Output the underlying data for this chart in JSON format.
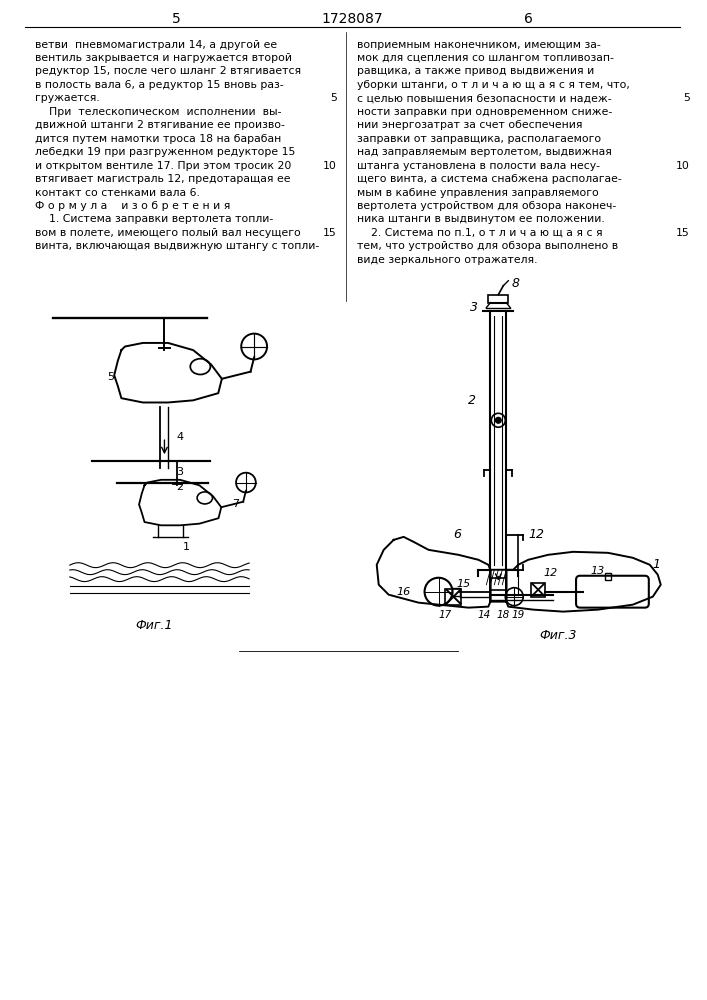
{
  "title": "1728087",
  "page_left": "5",
  "page_right": "6",
  "fig1_caption": "Фиг.1",
  "fig3_caption": "Фиг.3",
  "left_column": [
    "ветви  пневмомагистрали 14, а другой ее",
    "вентиль закрывается и нагружается второй",
    "редуктор 15, после чего шланг 2 втягивается",
    "в полость вала 6, а редуктор 15 вновь раз-",
    "гружается.",
    "    При  телескопическом  исполнении  вы-",
    "движной штанги 2 втягивание ее произво-",
    "дится путем намотки троса 18 на барабан",
    "лебедки 19 при разгруженном редукторе 15",
    "и открытом вентиле 17. При этом тросик 20",
    "втягивает магистраль 12, предотаращая ее",
    "контакт со стенками вала 6.",
    "Ф о р м у л а    и з о б р е т е н и я",
    "    1. Система заправки вертолета топли-",
    "вом в полете, имеющего полый вал несущего",
    "винта, включающая выдвижную штангу с топли-"
  ],
  "right_column": [
    "воприемным наконечником, имеющим за-",
    "мок для сцепления со шлангом топливозап-",
    "равщика, а также привод выдвижения и",
    "уборки штанги, о т л и ч а ю щ а я с я тем, что,",
    "с целью повышения безопасности и надеж-",
    "ности заправки при одновременном сниже-",
    "нии энергозатрат за счет обеспечения",
    "заправки от заправщика, располагаемого",
    "над заправляемым вертолетом, выдвижная",
    "штанга установлена в полости вала несу-",
    "щего винта, а система снабжена располагае-",
    "мым в кабине управления заправляемого",
    "вертолета устройством для обзора наконеч-",
    "ника штанги в выдвинутом ее положении.",
    "    2. Система по п.1, о т л и ч а ю щ а я с я",
    "тем, что устройство для обзора выполнено в",
    "виде зеркального отражателя."
  ]
}
